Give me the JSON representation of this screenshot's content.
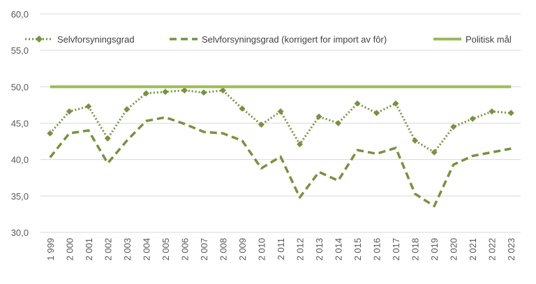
{
  "chart_data": {
    "type": "line",
    "title": "",
    "xlabel": "",
    "ylabel": "",
    "x": [
      "1 999",
      "2 000",
      "2 001",
      "2 002",
      "2 003",
      "2 004",
      "2 005",
      "2 006",
      "2 007",
      "2 008",
      "2 009",
      "2 010",
      "2 011",
      "2 012",
      "2 013",
      "2 014",
      "2 015",
      "2 016",
      "2 017",
      "2 018",
      "2 019",
      "2 020",
      "2 021",
      "2 022",
      "2 023"
    ],
    "ylim": [
      30,
      60
    ],
    "yticks": [
      "30,0",
      "35,0",
      "40,0",
      "45,0",
      "50,0",
      "55,0",
      "60,0"
    ],
    "grid": "horizontal",
    "legend_position": "top",
    "series": [
      {
        "name": "Selvforsyningsgrad",
        "style": "dotted-diamond",
        "color": "#77933C",
        "values": [
          43.6,
          46.6,
          47.3,
          42.9,
          46.9,
          49.1,
          49.3,
          49.5,
          49.2,
          49.5,
          47.0,
          44.8,
          46.6,
          42.1,
          45.9,
          45.0,
          47.7,
          46.4,
          47.7,
          42.6,
          41.0,
          44.5,
          45.6,
          46.6,
          46.4
        ]
      },
      {
        "name": "Selvforsyningsgrad (korrigert for import av fôr)",
        "style": "dashed",
        "color": "#77933C",
        "values": [
          40.3,
          43.6,
          44.0,
          39.5,
          42.6,
          45.3,
          45.8,
          44.9,
          43.8,
          43.6,
          42.6,
          38.8,
          40.4,
          34.8,
          38.3,
          37.1,
          41.3,
          40.8,
          41.6,
          35.3,
          33.6,
          39.3,
          40.5,
          41.0,
          41.5
        ]
      },
      {
        "name": "Politisk mål",
        "style": "solid",
        "color": "#9BBB59",
        "values": [
          50,
          50,
          50,
          50,
          50,
          50,
          50,
          50,
          50,
          50,
          50,
          50,
          50,
          50,
          50,
          50,
          50,
          50,
          50,
          50,
          50,
          50,
          50,
          50,
          50
        ]
      }
    ]
  }
}
